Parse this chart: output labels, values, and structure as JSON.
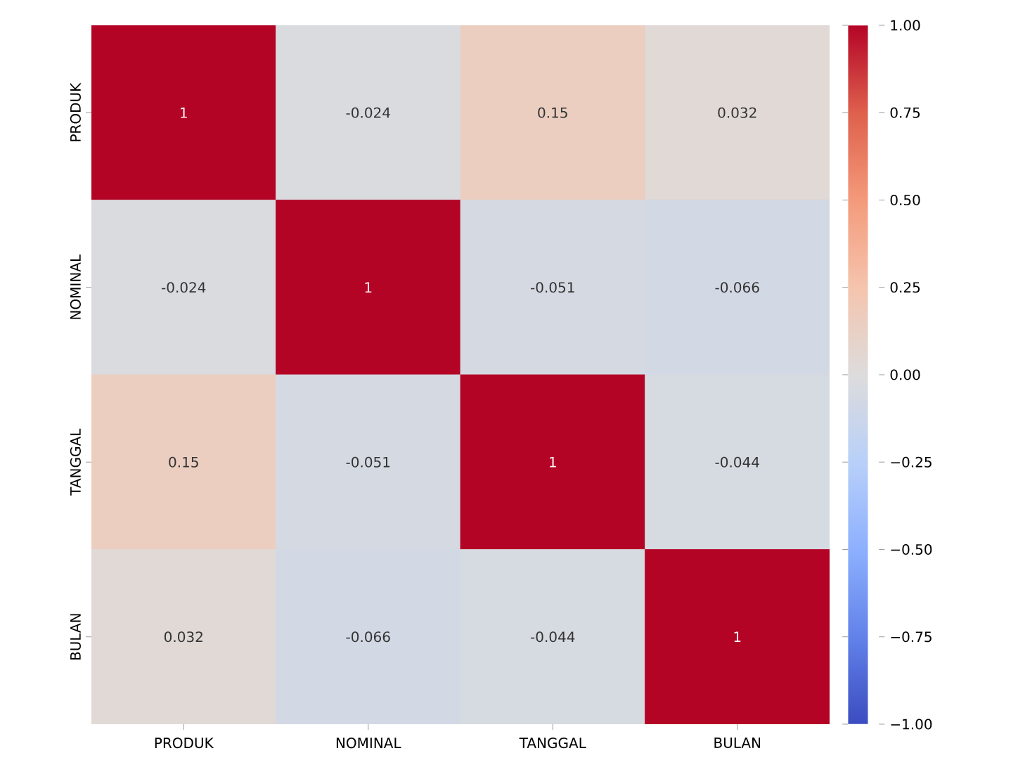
{
  "chart_data": {
    "type": "heatmap",
    "categories": [
      "PRODUK",
      "NOMINAL",
      "TANGGAL",
      "BULAN"
    ],
    "y_categories": [
      "PRODUK",
      "NOMINAL",
      "TANGGAL",
      "BULAN"
    ],
    "cells": [
      [
        1,
        -0.024,
        0.15,
        0.032
      ],
      [
        -0.024,
        1,
        -0.051,
        -0.066
      ],
      [
        0.15,
        -0.051,
        1,
        -0.044
      ],
      [
        0.032,
        -0.066,
        -0.044,
        1
      ]
    ],
    "data_labels": true,
    "clim": [
      -1,
      1
    ],
    "cticks": [
      {
        "value": -1,
        "label": "−1.00"
      },
      {
        "value": -0.75,
        "label": "−0.75"
      },
      {
        "value": -0.5,
        "label": "−0.50"
      },
      {
        "value": -0.25,
        "label": "−0.25"
      },
      {
        "value": 0,
        "label": "0.00"
      },
      {
        "value": 0.25,
        "label": "0.25"
      },
      {
        "value": 0.5,
        "label": "0.50"
      },
      {
        "value": 0.75,
        "label": "0.75"
      },
      {
        "value": 1,
        "label": "1.00"
      }
    ]
  }
}
